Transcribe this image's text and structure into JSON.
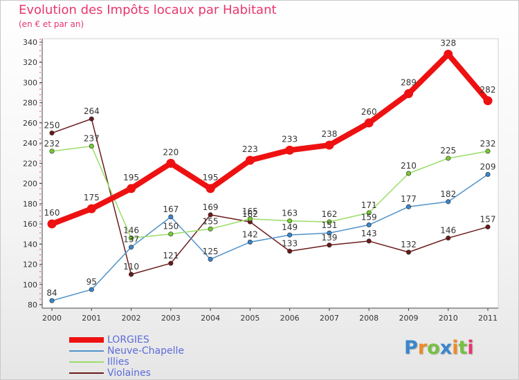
{
  "chart_data": {
    "type": "line",
    "title": "Evolution des Impôts locaux par Habitant",
    "subtitle": "(en € et par an)",
    "x": [
      "2000",
      "2001",
      "2002",
      "2003",
      "2004",
      "2005",
      "2006",
      "2007",
      "2008",
      "2009",
      "2010",
      "2011"
    ],
    "ylim": [
      80,
      340
    ],
    "yticks": [
      80,
      100,
      120,
      140,
      160,
      180,
      200,
      220,
      240,
      260,
      280,
      300,
      320,
      340
    ],
    "series": [
      {
        "name": "Violaines",
        "color": "#6a1a1a",
        "marker": "#6a1a1a",
        "values": [
          250,
          264,
          110,
          121,
          169,
          162,
          133,
          139,
          143,
          132,
          146,
          157
        ]
      },
      {
        "name": "Neuve-Chapelle",
        "color": "#4f91c9",
        "marker": "#3a86cc",
        "values": [
          84,
          95,
          137,
          167,
          125,
          142,
          149,
          151,
          159,
          177,
          182,
          209
        ]
      },
      {
        "name": "Illies",
        "color": "#99dd66",
        "marker": "#77cc33",
        "values": [
          232,
          237,
          146,
          150,
          155,
          165,
          163,
          162,
          171,
          210,
          225,
          232
        ]
      },
      {
        "name": "LORGIES",
        "color": "#ee1111",
        "marker": "#ee1111",
        "values": [
          160,
          175,
          195,
          220,
          195,
          223,
          233,
          238,
          260,
          289,
          328,
          282
        ]
      }
    ],
    "legend": [
      "LORGIES",
      "Neuve-Chapelle",
      "Illies",
      "Violaines"
    ]
  },
  "logo": {
    "letters": [
      "P",
      "r",
      "o",
      "x",
      "i",
      "t",
      "i"
    ],
    "colors": [
      "#3a86cc",
      "#f08a24",
      "#77c043",
      "#3a86cc",
      "#f08a24",
      "#77c043",
      "#e8366c"
    ]
  }
}
